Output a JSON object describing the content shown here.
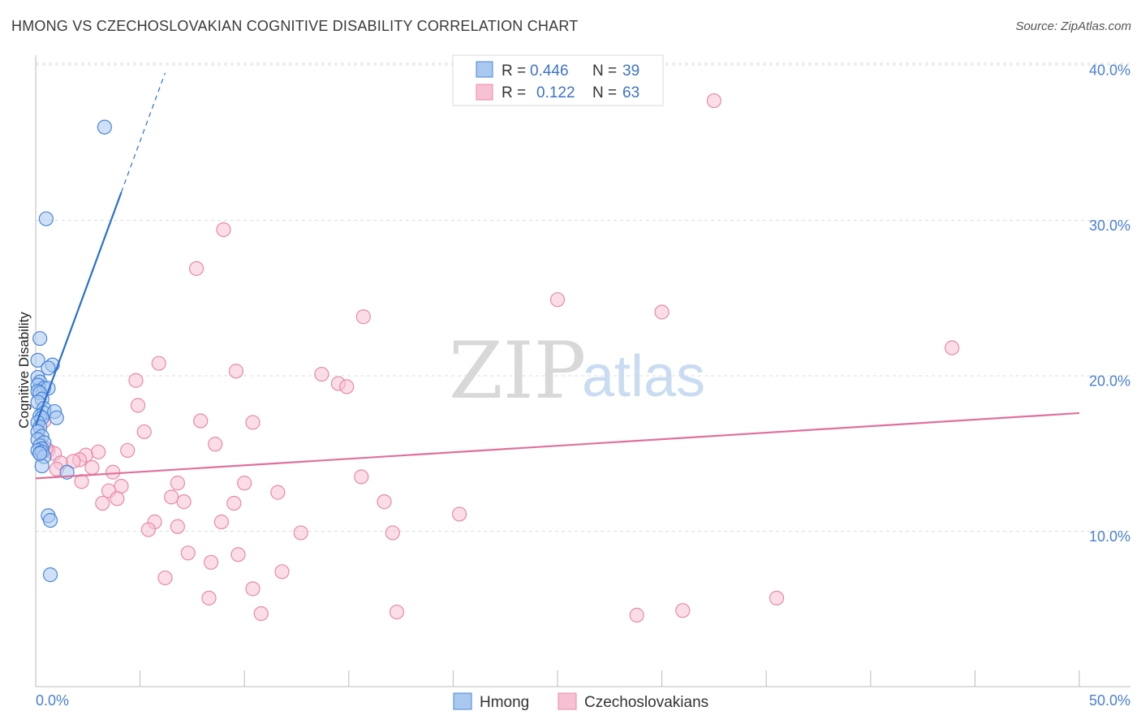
{
  "title": "HMONG VS CZECHOSLOVAKIAN COGNITIVE DISABILITY CORRELATION CHART",
  "source": "Source: ZipAtlas.com",
  "watermark": {
    "part1": "ZIP",
    "part2": "atlas"
  },
  "legend": {
    "r_label": "R =",
    "n_label": "N =",
    "rows": [
      {
        "r": "0.446",
        "n": "39"
      },
      {
        "r": "0.122",
        "n": "63"
      }
    ]
  },
  "bottom_legend": [
    "Hmong",
    "Czechoslovakians"
  ],
  "chart_data": {
    "type": "scatter",
    "ylabel": "Cognitive Disability",
    "xlim": [
      0,
      50
    ],
    "ylim": [
      0,
      42
    ],
    "x_tick_labels": {
      "left": "0.0%",
      "right": "50.0%"
    },
    "y_ticks": [
      {
        "value": 10,
        "label": "10.0%"
      },
      {
        "value": 20,
        "label": "20.0%"
      },
      {
        "value": 30,
        "label": "30.0%"
      },
      {
        "value": 40,
        "label": "40.0%"
      }
    ],
    "grid": true,
    "legend_position": "top-center",
    "colors": {
      "hmong_fill": "#a9c8f0",
      "hmong_stroke": "#4a86d8",
      "hmong_line": "#2a6fd0",
      "czech_fill": "#f7c1d3",
      "czech_stroke": "#e889a9",
      "czech_line": "#e0709a"
    },
    "series": [
      {
        "name": "Hmong",
        "r": 0.446,
        "n": 39,
        "trend": {
          "x0": 0,
          "y0": 16.8,
          "x1": 4.1,
          "y1": 31.8,
          "dash_to_x": 6.2
        },
        "points": [
          [
            3.3,
            36.0
          ],
          [
            0.5,
            30.1
          ],
          [
            0.2,
            22.4
          ],
          [
            0.1,
            21.0
          ],
          [
            0.8,
            20.7
          ],
          [
            0.6,
            20.5
          ],
          [
            0.1,
            19.9
          ],
          [
            0.2,
            19.6
          ],
          [
            0.1,
            19.4
          ],
          [
            0.4,
            19.2
          ],
          [
            0.6,
            19.2
          ],
          [
            0.1,
            19.0
          ],
          [
            0.2,
            18.9
          ],
          [
            0.3,
            18.5
          ],
          [
            0.1,
            18.3
          ],
          [
            0.4,
            17.9
          ],
          [
            0.4,
            17.6
          ],
          [
            0.9,
            17.7
          ],
          [
            0.2,
            17.4
          ],
          [
            0.3,
            17.3
          ],
          [
            1.0,
            17.3
          ],
          [
            0.1,
            17.0
          ],
          [
            0.2,
            16.7
          ],
          [
            0.1,
            16.4
          ],
          [
            0.3,
            16.1
          ],
          [
            0.1,
            15.9
          ],
          [
            0.4,
            15.7
          ],
          [
            0.2,
            15.5
          ],
          [
            0.3,
            15.3
          ],
          [
            0.1,
            15.2
          ],
          [
            0.2,
            15.0
          ],
          [
            0.3,
            15.1
          ],
          [
            0.4,
            14.8
          ],
          [
            0.3,
            14.2
          ],
          [
            1.5,
            13.8
          ],
          [
            0.6,
            11.0
          ],
          [
            0.7,
            10.7
          ],
          [
            0.7,
            7.2
          ],
          [
            0.2,
            15.0
          ]
        ]
      },
      {
        "name": "Czechoslovakians",
        "r": 0.122,
        "n": 63,
        "trend": {
          "x0": 0,
          "y0": 13.4,
          "x1": 50,
          "y1": 17.6
        },
        "points": [
          [
            32.5,
            37.7
          ],
          [
            9.0,
            29.4
          ],
          [
            7.7,
            26.9
          ],
          [
            25.0,
            24.9
          ],
          [
            30.0,
            24.1
          ],
          [
            15.7,
            23.8
          ],
          [
            43.9,
            21.8
          ],
          [
            5.9,
            20.8
          ],
          [
            9.6,
            20.3
          ],
          [
            13.7,
            20.1
          ],
          [
            4.8,
            19.7
          ],
          [
            14.5,
            19.5
          ],
          [
            14.9,
            19.3
          ],
          [
            4.9,
            18.1
          ],
          [
            7.9,
            17.1
          ],
          [
            10.4,
            17.0
          ],
          [
            5.2,
            16.4
          ],
          [
            0.4,
            17.1
          ],
          [
            8.6,
            15.6
          ],
          [
            0.6,
            15.2
          ],
          [
            4.4,
            15.2
          ],
          [
            3.0,
            15.1
          ],
          [
            0.9,
            15.0
          ],
          [
            2.4,
            14.9
          ],
          [
            2.1,
            14.6
          ],
          [
            1.2,
            14.4
          ],
          [
            1.8,
            14.5
          ],
          [
            2.7,
            14.1
          ],
          [
            1.0,
            14.0
          ],
          [
            3.7,
            13.8
          ],
          [
            15.6,
            13.5
          ],
          [
            2.2,
            13.2
          ],
          [
            6.8,
            13.1
          ],
          [
            10.0,
            13.1
          ],
          [
            4.1,
            12.9
          ],
          [
            3.5,
            12.6
          ],
          [
            11.6,
            12.5
          ],
          [
            6.5,
            12.2
          ],
          [
            3.9,
            12.1
          ],
          [
            7.1,
            11.9
          ],
          [
            9.5,
            11.8
          ],
          [
            3.2,
            11.8
          ],
          [
            16.7,
            11.9
          ],
          [
            20.3,
            11.1
          ],
          [
            5.7,
            10.6
          ],
          [
            8.9,
            10.6
          ],
          [
            6.8,
            10.3
          ],
          [
            5.4,
            10.1
          ],
          [
            12.7,
            9.9
          ],
          [
            17.1,
            9.9
          ],
          [
            7.3,
            8.6
          ],
          [
            9.7,
            8.5
          ],
          [
            8.4,
            8.0
          ],
          [
            11.8,
            7.4
          ],
          [
            6.2,
            7.0
          ],
          [
            10.4,
            6.3
          ],
          [
            8.3,
            5.7
          ],
          [
            35.5,
            5.7
          ],
          [
            31.0,
            4.9
          ],
          [
            17.3,
            4.8
          ],
          [
            10.8,
            4.7
          ],
          [
            28.8,
            4.6
          ],
          [
            0.5,
            15.3
          ]
        ]
      }
    ]
  }
}
